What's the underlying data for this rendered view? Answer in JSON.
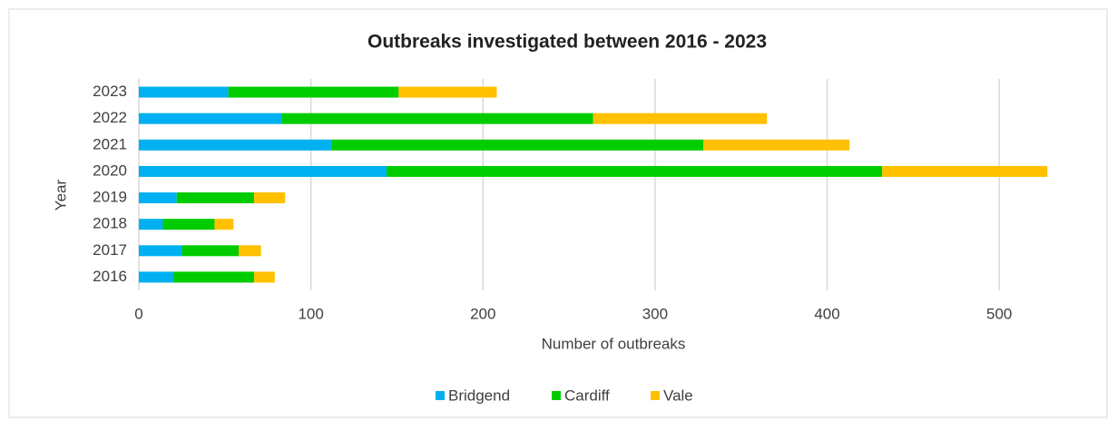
{
  "chart_data": {
    "type": "stacked_bar_horizontal",
    "title": "Outbreaks investigated between 2016 - 2023",
    "x_label": "Number of outbreaks",
    "y_label": "Year",
    "categories": [
      "2016",
      "2017",
      "2018",
      "2019",
      "2020",
      "2021",
      "2022",
      "2023"
    ],
    "series": [
      {
        "name": "Bridgend",
        "color": "#00b0f0",
        "values": [
          20,
          25,
          14,
          22,
          144,
          112,
          83,
          52
        ]
      },
      {
        "name": "Cardiff",
        "color": "#00cc00",
        "values": [
          47,
          33,
          30,
          45,
          288,
          216,
          181,
          99
        ]
      },
      {
        "name": "Vale",
        "color": "#ffc000",
        "values": [
          12,
          13,
          11,
          18,
          96,
          85,
          101,
          57
        ]
      }
    ],
    "xlim": [
      0,
      550
    ],
    "xticks": [
      0,
      100,
      200,
      300,
      400,
      500
    ],
    "grid": true,
    "legend": "bottom"
  }
}
